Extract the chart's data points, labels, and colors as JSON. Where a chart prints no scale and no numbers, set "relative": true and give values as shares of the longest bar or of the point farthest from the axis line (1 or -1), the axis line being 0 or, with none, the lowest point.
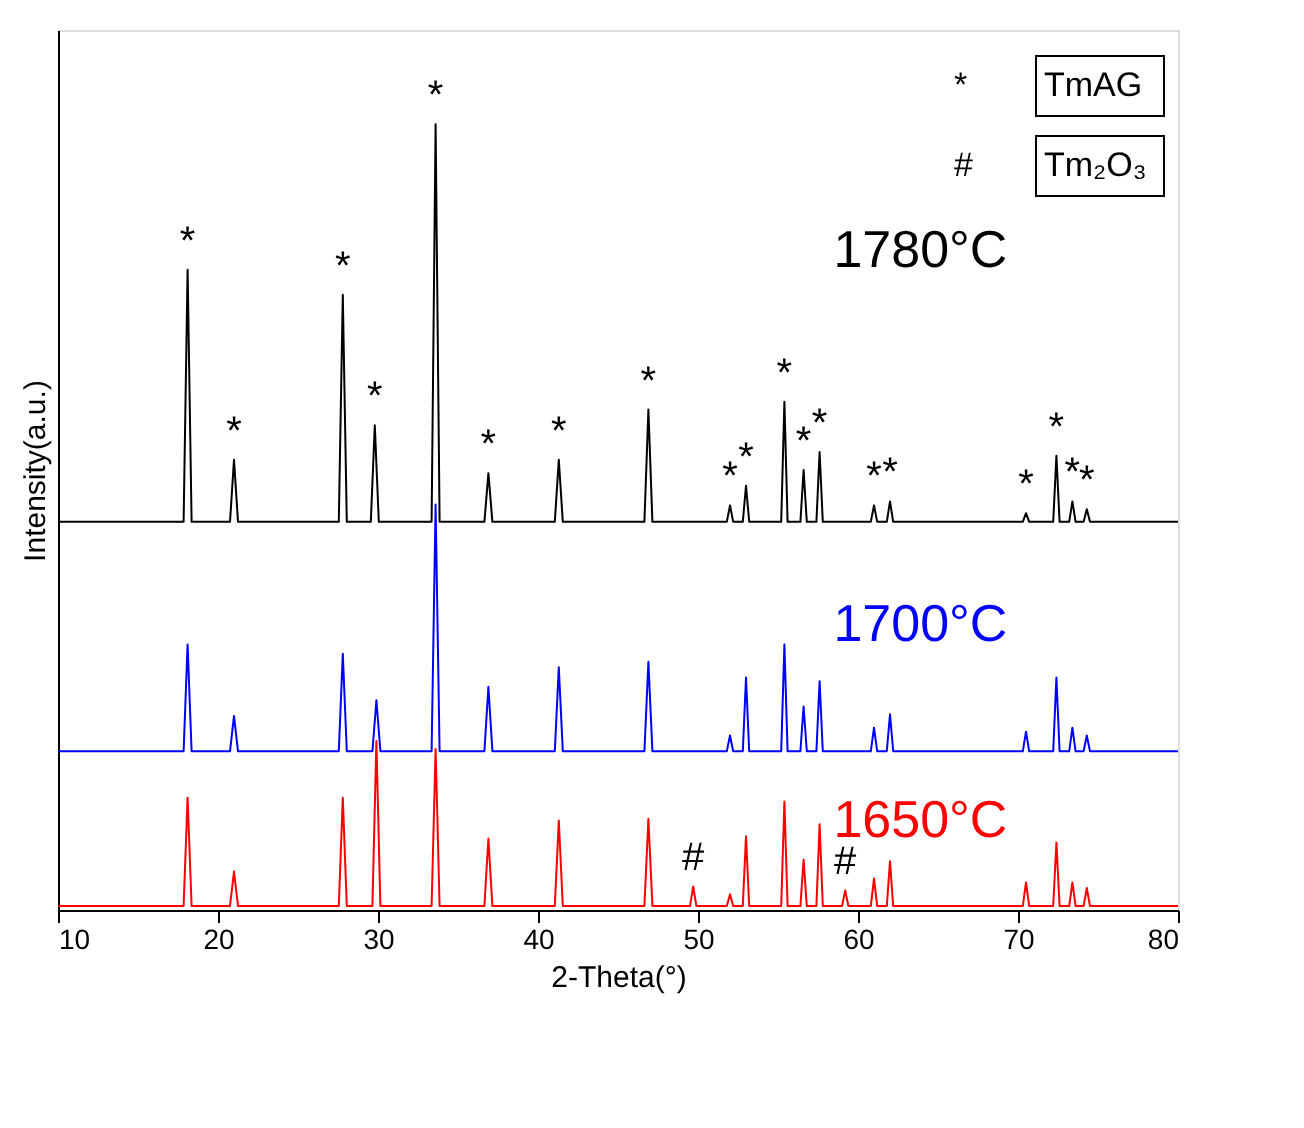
{
  "chart_data": {
    "type": "line",
    "relative": true,
    "xlabel": "2-Theta(°)",
    "ylabel": "Intensity(a.u.)",
    "xlim": [
      10,
      80
    ],
    "xticks": [
      10,
      20,
      30,
      40,
      50,
      60,
      70,
      80
    ],
    "tick_labels": "x",
    "grid": false,
    "legend": false,
    "marker": "none",
    "line_style": "solid",
    "series": [
      {
        "name": "1780°C",
        "color": "#000000",
        "x": [
          10,
          17.85,
          18.1,
          18.35,
          20.75,
          21.0,
          21.25,
          27.55,
          27.8,
          28.05,
          29.55,
          29.8,
          30.05,
          33.35,
          33.6,
          33.85,
          36.65,
          36.9,
          37.15,
          41.05,
          41.3,
          41.55,
          46.65,
          46.9,
          47.15,
          51.8,
          52.0,
          52.2,
          52.8,
          53.0,
          53.2,
          55.2,
          55.4,
          55.6,
          56.4,
          56.6,
          56.8,
          57.4,
          57.6,
          57.8,
          60.8,
          61.0,
          61.2,
          61.8,
          62.0,
          62.2,
          70.3,
          70.5,
          70.7,
          72.2,
          72.4,
          72.6,
          73.2,
          73.4,
          73.6,
          74.1,
          74.3,
          74.5,
          80
        ],
        "values": [
          0.494,
          0.494,
          0.815,
          0.494,
          0.494,
          0.573,
          0.494,
          0.494,
          0.783,
          0.494,
          0.494,
          0.617,
          0.494,
          0.494,
          1.0,
          0.494,
          0.494,
          0.556,
          0.494,
          0.494,
          0.573,
          0.494,
          0.494,
          0.637,
          0.494,
          0.494,
          0.515,
          0.494,
          0.494,
          0.54,
          0.494,
          0.494,
          0.647,
          0.494,
          0.494,
          0.56,
          0.494,
          0.494,
          0.583,
          0.494,
          0.494,
          0.515,
          0.494,
          0.494,
          0.52,
          0.494,
          0.494,
          0.505,
          0.494,
          0.494,
          0.578,
          0.494,
          0.494,
          0.52,
          0.494,
          0.494,
          0.51,
          0.494,
          0.494
        ]
      },
      {
        "name": "1700°C",
        "color": "#0000ff",
        "x": [
          10,
          17.85,
          18.1,
          18.35,
          20.75,
          21.0,
          21.25,
          27.55,
          27.8,
          28.05,
          29.65,
          29.9,
          30.15,
          33.35,
          33.6,
          33.85,
          36.65,
          36.9,
          37.15,
          41.05,
          41.3,
          41.55,
          46.65,
          46.9,
          47.15,
          51.8,
          52.0,
          52.2,
          52.8,
          53.0,
          53.2,
          55.2,
          55.4,
          55.6,
          56.4,
          56.6,
          56.8,
          57.4,
          57.6,
          57.8,
          60.8,
          61.0,
          61.2,
          61.8,
          62.0,
          62.2,
          70.3,
          70.5,
          70.7,
          72.2,
          72.4,
          72.6,
          73.2,
          73.4,
          73.6,
          74.1,
          74.3,
          74.5,
          80
        ],
        "values": [
          0.202,
          0.202,
          0.338,
          0.202,
          0.202,
          0.247,
          0.202,
          0.202,
          0.326,
          0.202,
          0.202,
          0.267,
          0.202,
          0.202,
          0.516,
          0.202,
          0.202,
          0.284,
          0.202,
          0.202,
          0.309,
          0.202,
          0.202,
          0.316,
          0.202,
          0.202,
          0.222,
          0.202,
          0.202,
          0.296,
          0.202,
          0.202,
          0.338,
          0.202,
          0.202,
          0.259,
          0.202,
          0.202,
          0.291,
          0.202,
          0.202,
          0.232,
          0.202,
          0.202,
          0.249,
          0.202,
          0.202,
          0.227,
          0.202,
          0.202,
          0.296,
          0.202,
          0.202,
          0.232,
          0.202,
          0.202,
          0.222,
          0.202,
          0.202
        ]
      },
      {
        "name": "1650°C",
        "color": "#ff0000",
        "x": [
          10,
          17.85,
          18.1,
          18.35,
          20.75,
          21.0,
          21.25,
          27.55,
          27.8,
          28.05,
          29.65,
          29.9,
          30.15,
          33.35,
          33.6,
          33.85,
          36.65,
          36.9,
          37.15,
          41.05,
          41.3,
          41.55,
          46.65,
          46.9,
          47.15,
          49.5,
          49.7,
          49.9,
          51.8,
          52.0,
          52.2,
          52.8,
          53.0,
          53.2,
          55.2,
          55.4,
          55.6,
          56.4,
          56.6,
          56.8,
          57.4,
          57.6,
          57.8,
          59.0,
          59.2,
          59.4,
          60.8,
          61.0,
          61.2,
          61.8,
          62.0,
          62.2,
          70.3,
          70.5,
          70.7,
          72.2,
          72.4,
          72.6,
          73.2,
          73.4,
          73.6,
          74.1,
          74.3,
          74.5,
          80
        ],
        "values": [
          0.005,
          0.005,
          0.143,
          0.005,
          0.005,
          0.049,
          0.005,
          0.005,
          0.143,
          0.005,
          0.005,
          0.215,
          0.005,
          0.005,
          0.205,
          0.005,
          0.005,
          0.091,
          0.005,
          0.005,
          0.114,
          0.005,
          0.005,
          0.116,
          0.005,
          0.005,
          0.03,
          0.005,
          0.005,
          0.02,
          0.005,
          0.005,
          0.094,
          0.005,
          0.005,
          0.138,
          0.005,
          0.005,
          0.064,
          0.005,
          0.005,
          0.109,
          0.005,
          0.005,
          0.025,
          0.005,
          0.005,
          0.04,
          0.005,
          0.005,
          0.062,
          0.005,
          0.005,
          0.035,
          0.005,
          0.005,
          0.086,
          0.005,
          0.005,
          0.035,
          0.005,
          0.005,
          0.028,
          0.005,
          0.005
        ]
      }
    ],
    "annotations": [
      {
        "text": "*",
        "x": 18.1,
        "y": 0.815
      },
      {
        "text": "*",
        "x": 21.0,
        "y": 0.573
      },
      {
        "text": "*",
        "x": 27.8,
        "y": 0.783
      },
      {
        "text": "*",
        "x": 29.8,
        "y": 0.617
      },
      {
        "text": "*",
        "x": 33.6,
        "y": 1.0
      },
      {
        "text": "*",
        "x": 36.9,
        "y": 0.556
      },
      {
        "text": "*",
        "x": 41.3,
        "y": 0.573
      },
      {
        "text": "*",
        "x": 46.9,
        "y": 0.637
      },
      {
        "text": "*",
        "x": 52.0,
        "y": 0.515
      },
      {
        "text": "*",
        "x": 53.0,
        "y": 0.54
      },
      {
        "text": "*",
        "x": 55.4,
        "y": 0.647
      },
      {
        "text": "*",
        "x": 56.6,
        "y": 0.56
      },
      {
        "text": "*",
        "x": 57.6,
        "y": 0.583
      },
      {
        "text": "*",
        "x": 61.0,
        "y": 0.515
      },
      {
        "text": "*",
        "x": 62.0,
        "y": 0.52
      },
      {
        "text": "*",
        "x": 70.5,
        "y": 0.505
      },
      {
        "text": "*",
        "x": 72.4,
        "y": 0.578
      },
      {
        "text": "*",
        "x": 73.4,
        "y": 0.52
      },
      {
        "text": "*",
        "x": 74.3,
        "y": 0.51
      },
      {
        "text": "#",
        "x": 49.7,
        "y": 0.03
      },
      {
        "text": "#",
        "x": 59.2,
        "y": 0.025
      },
      "*",
      "TmAG",
      "#",
      "Tm₂O₃"
    ]
  }
}
